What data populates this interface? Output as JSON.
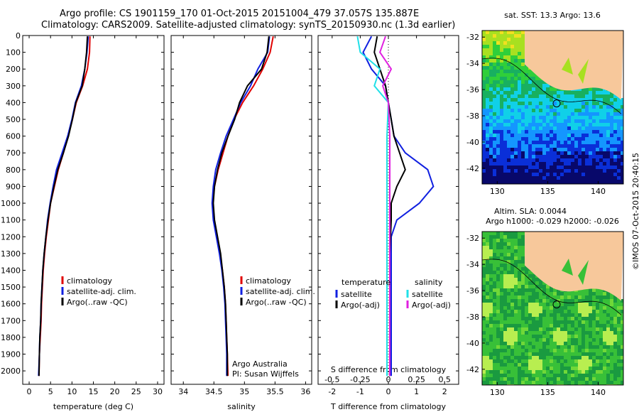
{
  "header": {
    "line1": "Argo profile: CS 1901159_170 01-Oct-2015 20151004_479 37.057S 135.887E",
    "line2": "Climatology: CARS2009. Satellite-adjusted climatology: synTS_20150930.nc (1.3d earlier)"
  },
  "colors": {
    "climatology": "#e00000",
    "satellite": "#1020e0",
    "argo": "#000000",
    "sal_satellite": "#20e0e8",
    "sal_argo": "#e020e0",
    "land": "#f7c89b"
  },
  "chart_data": [
    {
      "type": "line",
      "title": "",
      "xlabel": "temperature (deg C)",
      "ylabel": "",
      "xlim": [
        -1.5,
        31.5
      ],
      "ylim": [
        2080,
        0
      ],
      "x_ticks": [
        0,
        5,
        10,
        15,
        20,
        25,
        30
      ],
      "y_ticks": [
        0,
        100,
        200,
        300,
        400,
        500,
        600,
        700,
        800,
        900,
        1000,
        1100,
        1200,
        1300,
        1400,
        1500,
        1600,
        1700,
        1800,
        1900,
        2000
      ],
      "legend": [
        "climatology",
        "satellite-adj. clim.",
        "Argo(..raw -QC)"
      ],
      "legend_position": "lower-middle",
      "series": [
        {
          "name": "climatology",
          "color": "#e00000",
          "points": [
            [
              14.2,
              5
            ],
            [
              14.1,
              100
            ],
            [
              13.6,
              200
            ],
            [
              12.5,
              300
            ],
            [
              11.0,
              400
            ],
            [
              10.1,
              500
            ],
            [
              9.1,
              600
            ],
            [
              8.0,
              700
            ],
            [
              6.8,
              800
            ],
            [
              5.9,
              900
            ],
            [
              5.0,
              1000
            ],
            [
              4.5,
              1100
            ],
            [
              4.0,
              1200
            ],
            [
              3.6,
              1300
            ],
            [
              3.3,
              1400
            ],
            [
              3.1,
              1500
            ],
            [
              2.9,
              1600
            ],
            [
              2.8,
              1700
            ],
            [
              2.6,
              1800
            ],
            [
              2.4,
              1900
            ],
            [
              2.3,
              2030
            ]
          ]
        },
        {
          "name": "satellite-adj. clim.",
          "color": "#1020e0",
          "points": [
            [
              13.8,
              5
            ],
            [
              13.5,
              100
            ],
            [
              13.0,
              200
            ],
            [
              12.2,
              300
            ],
            [
              10.8,
              400
            ],
            [
              10.0,
              500
            ],
            [
              9.0,
              600
            ],
            [
              7.7,
              700
            ],
            [
              6.4,
              800
            ],
            [
              5.6,
              900
            ],
            [
              4.9,
              1000
            ],
            [
              4.3,
              1100
            ],
            [
              3.9,
              1200
            ],
            [
              3.5,
              1300
            ],
            [
              3.2,
              1400
            ],
            [
              3.0,
              1500
            ],
            [
              2.8,
              1600
            ],
            [
              2.7,
              1700
            ],
            [
              2.5,
              1800
            ],
            [
              2.4,
              1900
            ],
            [
              2.2,
              2030
            ]
          ]
        },
        {
          "name": "Argo(..raw -QC)",
          "color": "#000000",
          "points": [
            [
              13.6,
              5
            ],
            [
              13.4,
              100
            ],
            [
              13.0,
              200
            ],
            [
              12.4,
              300
            ],
            [
              10.9,
              400
            ],
            [
              10.1,
              500
            ],
            [
              9.2,
              600
            ],
            [
              8.0,
              700
            ],
            [
              6.7,
              800
            ],
            [
              5.8,
              900
            ],
            [
              5.0,
              1000
            ],
            [
              4.4,
              1100
            ],
            [
              3.9,
              1200
            ],
            [
              3.5,
              1300
            ],
            [
              3.2,
              1400
            ],
            [
              3.0,
              1500
            ],
            [
              2.8,
              1600
            ],
            [
              2.7,
              1700
            ],
            [
              2.5,
              1800
            ],
            [
              2.4,
              1900
            ],
            [
              2.3,
              2030
            ]
          ]
        }
      ]
    },
    {
      "type": "line",
      "title": "",
      "xlabel": "salinity",
      "ylabel": "",
      "xlim": [
        33.8,
        36.1
      ],
      "ylim": [
        2080,
        0
      ],
      "x_ticks": [
        34,
        34.5,
        35,
        35.5,
        36
      ],
      "legend": [
        "climatology",
        "satellite-adj. clim.",
        "Argo(..raw -QC)"
      ],
      "legend_position": "lower-right",
      "annotation": [
        "Argo Australia",
        "PI: Susan Wijffels"
      ],
      "series": [
        {
          "name": "climatology",
          "color": "#e00000",
          "points": [
            [
              35.47,
              5
            ],
            [
              35.42,
              100
            ],
            [
              35.3,
              200
            ],
            [
              35.15,
              300
            ],
            [
              34.97,
              400
            ],
            [
              34.83,
              500
            ],
            [
              34.73,
              600
            ],
            [
              34.65,
              700
            ],
            [
              34.57,
              800
            ],
            [
              34.51,
              900
            ],
            [
              34.48,
              1000
            ],
            [
              34.5,
              1100
            ],
            [
              34.55,
              1200
            ],
            [
              34.6,
              1300
            ],
            [
              34.64,
              1400
            ],
            [
              34.67,
              1500
            ],
            [
              34.69,
              1600
            ],
            [
              34.7,
              1700
            ],
            [
              34.71,
              1800
            ],
            [
              34.72,
              1900
            ],
            [
              34.73,
              2030
            ]
          ]
        },
        {
          "name": "satellite-adj. clim.",
          "color": "#1020e0",
          "points": [
            [
              35.41,
              5
            ],
            [
              35.38,
              100
            ],
            [
              35.22,
              200
            ],
            [
              35.1,
              300
            ],
            [
              34.94,
              400
            ],
            [
              34.82,
              500
            ],
            [
              34.7,
              600
            ],
            [
              34.61,
              700
            ],
            [
              34.53,
              800
            ],
            [
              34.49,
              900
            ],
            [
              34.47,
              1000
            ],
            [
              34.49,
              1100
            ],
            [
              34.54,
              1200
            ],
            [
              34.59,
              1300
            ],
            [
              34.63,
              1400
            ],
            [
              34.66,
              1500
            ],
            [
              34.68,
              1600
            ],
            [
              34.69,
              1700
            ],
            [
              34.7,
              1800
            ],
            [
              34.71,
              1900
            ],
            [
              34.71,
              2030
            ]
          ]
        },
        {
          "name": "Argo(..raw -QC)",
          "color": "#000000",
          "points": [
            [
              35.4,
              5
            ],
            [
              35.37,
              100
            ],
            [
              35.28,
              200
            ],
            [
              35.05,
              300
            ],
            [
              34.92,
              400
            ],
            [
              34.84,
              500
            ],
            [
              34.73,
              600
            ],
            [
              34.63,
              700
            ],
            [
              34.56,
              800
            ],
            [
              34.51,
              900
            ],
            [
              34.49,
              1000
            ],
            [
              34.51,
              1100
            ],
            [
              34.56,
              1200
            ],
            [
              34.61,
              1300
            ],
            [
              34.64,
              1400
            ],
            [
              34.67,
              1500
            ],
            [
              34.69,
              1600
            ],
            [
              34.7,
              1700
            ],
            [
              34.71,
              1800
            ],
            [
              34.72,
              1900
            ],
            [
              34.72,
              2030
            ]
          ]
        }
      ]
    },
    {
      "type": "line",
      "title": "",
      "xlabel": "T difference from climatology",
      "xlabel_secondary": "S difference from climatology",
      "ylabel": "",
      "xlim": [
        -2.5,
        2.5
      ],
      "ylim": [
        2080,
        0
      ],
      "x_ticks": [
        -2,
        -1,
        0,
        1,
        2
      ],
      "x_ticks_secondary": [
        "-0.5",
        "-0.25",
        "0",
        "0.25",
        "0.5"
      ],
      "legend_groups": [
        {
          "heading": "temperature",
          "items": [
            "satellite",
            "Argo(-adj)"
          ]
        },
        {
          "heading": "salinity",
          "items": [
            "satellite",
            "Argo(-adj)"
          ]
        }
      ],
      "series": [
        {
          "name": "satellite",
          "group": "temperature",
          "color": "#1020e0",
          "points": [
            [
              -0.6,
              5
            ],
            [
              -0.9,
              100
            ],
            [
              -0.6,
              200
            ],
            [
              -0.1,
              300
            ],
            [
              0.0,
              400
            ],
            [
              0.1,
              500
            ],
            [
              0.2,
              600
            ],
            [
              0.6,
              700
            ],
            [
              1.4,
              800
            ],
            [
              1.6,
              900
            ],
            [
              1.1,
              1000
            ],
            [
              0.3,
              1100
            ],
            [
              0.1,
              1200
            ],
            [
              0.1,
              1400
            ],
            [
              0.1,
              1600
            ],
            [
              0.1,
              1800
            ],
            [
              0.1,
              2030
            ]
          ]
        },
        {
          "name": "Argo(-adj)",
          "group": "temperature",
          "color": "#000000",
          "points": [
            [
              -0.4,
              5
            ],
            [
              -0.5,
              100
            ],
            [
              -0.3,
              200
            ],
            [
              -0.1,
              300
            ],
            [
              0.0,
              400
            ],
            [
              0.1,
              500
            ],
            [
              0.2,
              600
            ],
            [
              0.4,
              700
            ],
            [
              0.6,
              800
            ],
            [
              0.3,
              900
            ],
            [
              0.1,
              1000
            ],
            [
              0.1,
              1100
            ],
            [
              0.05,
              1300
            ],
            [
              0.05,
              1500
            ],
            [
              0.05,
              1800
            ],
            [
              0.05,
              2030
            ]
          ]
        },
        {
          "name": "satellite",
          "group": "salinity",
          "color": "#20e0e8",
          "points": [
            [
              -1.1,
              5
            ],
            [
              -1.0,
              100
            ],
            [
              -0.3,
              200
            ],
            [
              -0.5,
              300
            ],
            [
              0.0,
              400
            ],
            [
              -0.05,
              600
            ],
            [
              -0.05,
              800
            ],
            [
              -0.05,
              1000
            ],
            [
              -0.05,
              1200
            ],
            [
              -0.05,
              1400
            ],
            [
              -0.05,
              1600
            ],
            [
              -0.05,
              1800
            ],
            [
              -0.05,
              2030
            ]
          ]
        },
        {
          "name": "Argo(-adj)",
          "group": "salinity",
          "color": "#e020e0",
          "points": [
            [
              -0.1,
              5
            ],
            [
              -0.3,
              100
            ],
            [
              0.1,
              200
            ],
            [
              -0.2,
              300
            ],
            [
              0.0,
              400
            ],
            [
              0.05,
              600
            ],
            [
              0.05,
              800
            ],
            [
              0.05,
              1000
            ],
            [
              0.05,
              1200
            ],
            [
              0.05,
              1400
            ],
            [
              0.05,
              1600
            ],
            [
              0.05,
              1800
            ],
            [
              0.05,
              2030
            ]
          ]
        }
      ]
    },
    {
      "type": "heatmap",
      "title": "sat. SST: 13.3 Argo: 13.6",
      "xlim": [
        128.5,
        142.5
      ],
      "ylim": [
        -43.2,
        -31.5
      ],
      "x_ticks": [
        130,
        135,
        140
      ],
      "y_ticks": [
        -32,
        -34,
        -36,
        -38,
        -40,
        -42
      ],
      "marker": {
        "lon": 135.887,
        "lat": -37.057
      },
      "colorscale": [
        "#08086a",
        "#0a2fd8",
        "#1496ff",
        "#10d0e8",
        "#18b060",
        "#2fcf3a",
        "#a8e020",
        "#f0e020"
      ]
    },
    {
      "type": "heatmap",
      "title": "Altim. SLA: 0.0044",
      "subtitle": "Argo h1000: -0.029 h2000: -0.026",
      "xlim": [
        128.5,
        142.5
      ],
      "ylim": [
        -43.2,
        -31.5
      ],
      "x_ticks": [
        130,
        135,
        140
      ],
      "y_ticks": [
        -32,
        -34,
        -36,
        -38,
        -40,
        -42
      ],
      "marker": {
        "lon": 135.887,
        "lat": -37.057
      },
      "colorscale": [
        "#1a9a40",
        "#38c038",
        "#70d838",
        "#b8ee50"
      ]
    }
  ],
  "footer": {
    "credit": "©IMOS 07-Oct-2015 20:40:15"
  }
}
